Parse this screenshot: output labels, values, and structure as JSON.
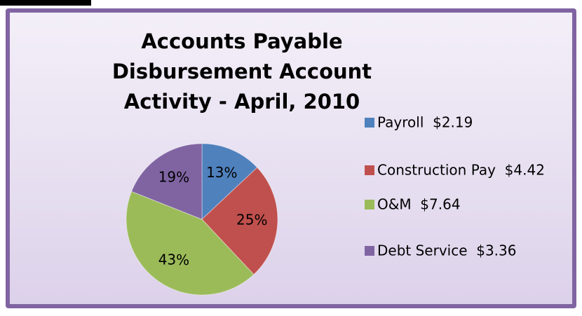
{
  "chart_data": {
    "type": "pie",
    "title": "Accounts Payable Disbursement Account Activity - April, 2010",
    "series": [
      {
        "name": "Payroll  $2.19",
        "color": "#4f81bd",
        "values": [
          13
        ]
      },
      {
        "name": "Construction Pay  $4.42",
        "color": "#c0504d",
        "values": [
          25
        ]
      },
      {
        "name": "O&M  $7.64",
        "color": "#9bbb59",
        "values": [
          43
        ]
      },
      {
        "name": "Debt Service  $3.36",
        "color": "#8064a2",
        "values": [
          19
        ]
      }
    ],
    "legend": "right"
  }
}
